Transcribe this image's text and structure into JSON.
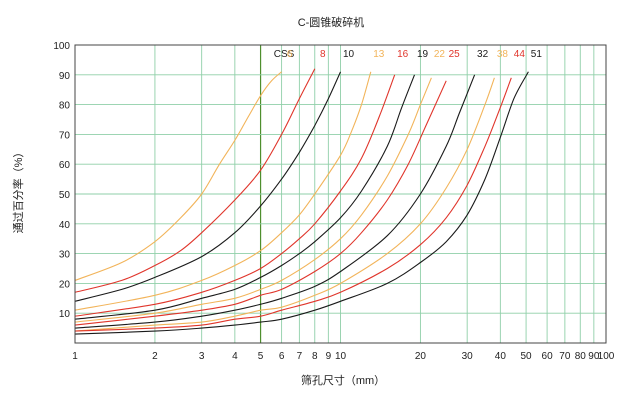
{
  "chart_data": {
    "type": "line",
    "title": "C-圆锥破碎机",
    "xlabel": "筛孔尺寸（mm）",
    "ylabel": "通过百分率（%）",
    "x_scale": "log",
    "xlim": [
      1,
      100
    ],
    "ylim": [
      0,
      100
    ],
    "grid": true,
    "x_ticks": [
      "1",
      "2",
      "3",
      "4",
      "5",
      "6",
      "7",
      "8",
      "9",
      "10",
      "20",
      "30",
      "40",
      "50",
      "60",
      "70",
      "80",
      "90",
      "100"
    ],
    "y_ticks": [
      "10",
      "20",
      "30",
      "40",
      "50",
      "60",
      "70",
      "80",
      "90",
      "100"
    ],
    "legend_title": "CSS",
    "colors": {
      "black": "#1a1a1a",
      "red": "#e0352b",
      "orange": "#f2b45a"
    },
    "series": [
      {
        "name": "6",
        "color": "orange",
        "x": [
          1,
          1.5,
          2,
          2.5,
          3,
          3.5,
          4,
          4.5,
          5,
          5.5,
          6
        ],
        "y": [
          21,
          27,
          34,
          42,
          50,
          60,
          68,
          76,
          83,
          88,
          91
        ]
      },
      {
        "name": "8",
        "color": "red",
        "x": [
          1,
          1.5,
          2,
          2.5,
          3,
          4,
          5,
          6,
          7,
          8
        ],
        "y": [
          17,
          21,
          26,
          31,
          37,
          48,
          58,
          70,
          82,
          92
        ]
      },
      {
        "name": "10",
        "color": "black",
        "x": [
          1,
          1.5,
          2,
          3,
          4,
          5,
          6,
          7,
          8,
          9,
          10
        ],
        "y": [
          14,
          18,
          22,
          29,
          37,
          46,
          55,
          64,
          73,
          82,
          91
        ]
      },
      {
        "name": "13",
        "color": "orange",
        "x": [
          1,
          2,
          3,
          4,
          5,
          6,
          7,
          8,
          10,
          11,
          12,
          13
        ],
        "y": [
          11,
          16,
          21,
          26,
          31,
          37,
          43,
          50,
          63,
          71,
          80,
          91
        ]
      },
      {
        "name": "16",
        "color": "red",
        "x": [
          1,
          2,
          3,
          4,
          5,
          6,
          7,
          8,
          10,
          12,
          14,
          16
        ],
        "y": [
          9,
          13,
          17,
          21,
          25,
          30,
          35,
          40,
          51,
          62,
          76,
          90
        ]
      },
      {
        "name": "19",
        "color": "black",
        "x": [
          1,
          2,
          3,
          4,
          5,
          6,
          7,
          8,
          10,
          12,
          15,
          17,
          19
        ],
        "y": [
          8,
          11,
          15,
          18,
          22,
          26,
          30,
          34,
          42,
          51,
          66,
          79,
          90
        ]
      },
      {
        "name": "22",
        "color": "orange",
        "x": [
          1,
          2,
          3,
          4,
          5,
          6,
          8,
          10,
          12,
          15,
          18,
          20,
          22
        ],
        "y": [
          7,
          10,
          13,
          15,
          18,
          21,
          28,
          35,
          43,
          56,
          70,
          80,
          89
        ]
      },
      {
        "name": "25",
        "color": "red",
        "x": [
          1,
          2,
          3,
          4,
          5,
          6,
          8,
          10,
          12,
          15,
          18,
          21,
          25
        ],
        "y": [
          6,
          9,
          11,
          13,
          16,
          18,
          24,
          30,
          37,
          48,
          60,
          73,
          88
        ]
      },
      {
        "name": "32",
        "color": "black",
        "x": [
          1,
          2,
          3,
          4,
          5,
          6,
          8,
          10,
          15,
          20,
          25,
          28,
          32
        ],
        "y": [
          5,
          7,
          9,
          11,
          13,
          15,
          19,
          24,
          36,
          50,
          66,
          77,
          90
        ]
      },
      {
        "name": "38",
        "color": "orange",
        "x": [
          1,
          2,
          3,
          4,
          5,
          6,
          8,
          10,
          15,
          20,
          25,
          30,
          35,
          38
        ],
        "y": [
          4,
          6,
          7,
          9,
          11,
          12,
          16,
          20,
          30,
          40,
          52,
          65,
          80,
          89
        ]
      },
      {
        "name": "44",
        "color": "red",
        "x": [
          1,
          2,
          3,
          4,
          5,
          6,
          8,
          10,
          15,
          20,
          25,
          30,
          35,
          40,
          44
        ],
        "y": [
          4,
          5,
          6,
          8,
          9,
          11,
          14,
          17,
          25,
          33,
          42,
          53,
          66,
          79,
          89
        ]
      },
      {
        "name": "51",
        "color": "black",
        "x": [
          1,
          2,
          3,
          4,
          5,
          6,
          8,
          10,
          15,
          20,
          25,
          30,
          35,
          40,
          45,
          51
        ],
        "y": [
          3,
          4,
          5,
          6,
          7,
          8,
          11,
          14,
          20,
          27,
          34,
          43,
          55,
          69,
          82,
          91
        ]
      }
    ]
  }
}
